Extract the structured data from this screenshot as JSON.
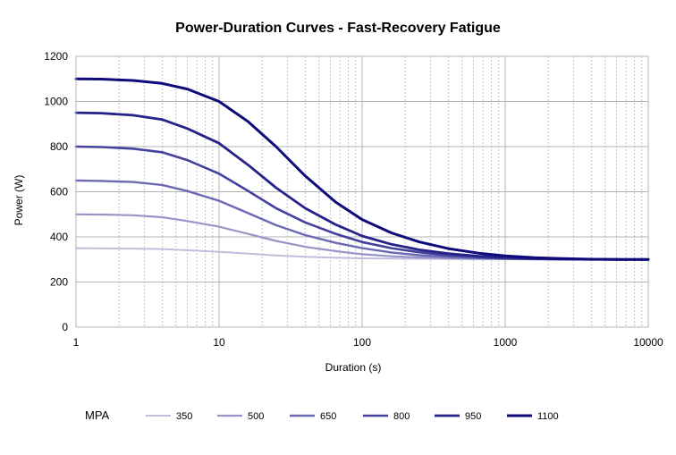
{
  "chart_data": {
    "type": "line",
    "title": "Power-Duration Curves - Fast-Recovery Fatigue",
    "xlabel": "Duration (s)",
    "ylabel": "Power (W)",
    "xscale": "log",
    "xlim": [
      1,
      10000
    ],
    "ylim": [
      0,
      1200
    ],
    "x_ticks": [
      1,
      10,
      100,
      1000,
      10000
    ],
    "x_tick_labels": [
      "1",
      "10",
      "100",
      "1000",
      "10000"
    ],
    "y_ticks": [
      0,
      200,
      400,
      600,
      800,
      1000,
      1200
    ],
    "y_tick_labels": [
      "0",
      "200",
      "400",
      "600",
      "800",
      "1000",
      "1200"
    ],
    "grid": true,
    "legend_title": "MPA",
    "legend_position": "bottom",
    "x": [
      1,
      1.5,
      2.5,
      4,
      6,
      10,
      16,
      25,
      40,
      65,
      100,
      160,
      250,
      400,
      650,
      1000,
      1600,
      2500,
      4000,
      6500,
      10000
    ],
    "series": [
      {
        "name": "350",
        "color": "#c0bedd",
        "values": [
          350,
          349,
          348,
          346,
          341,
          334,
          326,
          318,
          312,
          308,
          305,
          304,
          303,
          302,
          301,
          301,
          300,
          300,
          300,
          300,
          300
        ]
      },
      {
        "name": "500",
        "color": "#9795c8",
        "values": [
          500,
          499,
          496,
          487,
          470,
          445,
          413,
          382,
          356,
          337,
          323,
          314,
          309,
          305,
          303,
          302,
          301,
          300,
          300,
          300,
          300
        ]
      },
      {
        "name": "650",
        "color": "#6b69b3",
        "values": [
          650,
          648,
          643,
          630,
          603,
          560,
          505,
          452,
          408,
          374,
          350,
          331,
          319,
          311,
          306,
          303,
          302,
          301,
          300,
          300,
          300
        ]
      },
      {
        "name": "800",
        "color": "#44419e",
        "values": [
          800,
          798,
          791,
          775,
          740,
          680,
          603,
          527,
          464,
          414,
          377,
          350,
          332,
          318,
          310,
          305,
          302,
          301,
          300,
          300,
          300
        ]
      },
      {
        "name": "950",
        "color": "#252289",
        "values": [
          950,
          948,
          939,
          920,
          880,
          815,
          718,
          618,
          527,
          455,
          404,
          367,
          343,
          326,
          315,
          308,
          304,
          302,
          301,
          300,
          300
        ]
      },
      {
        "name": "1100",
        "color": "#0d0a7a",
        "values": [
          1100,
          1099,
          1093,
          1080,
          1055,
          1000,
          910,
          800,
          670,
          555,
          477,
          418,
          378,
          348,
          328,
          316,
          308,
          304,
          301,
          300,
          300
        ]
      }
    ]
  }
}
